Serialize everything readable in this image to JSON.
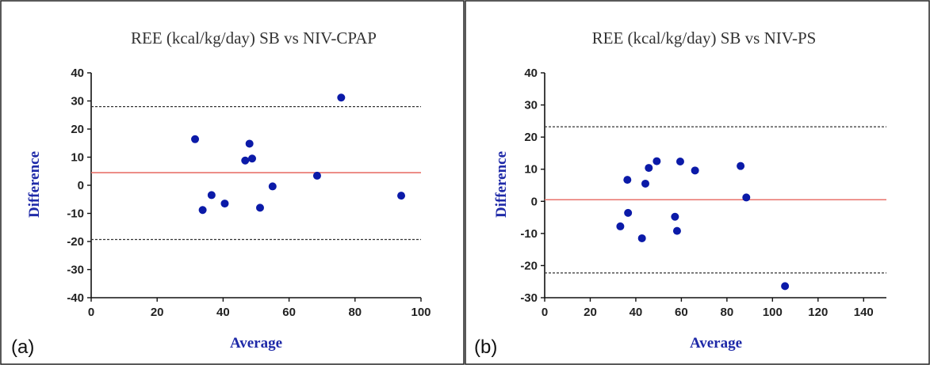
{
  "chart_data": [
    {
      "type": "scatter",
      "panel_label": "(a)",
      "title": "REE (kcal/kg/day) SB vs NIV-CPAP",
      "xlabel": "Average",
      "ylabel": "Difference",
      "xlim": [
        0,
        100
      ],
      "ylim": [
        -40,
        40
      ],
      "xticks": [
        0,
        20,
        40,
        60,
        80,
        100
      ],
      "yticks": [
        40,
        30,
        20,
        10,
        0,
        -10,
        -20,
        -30,
        -40
      ],
      "mean_line": 4.5,
      "upper_loa": 28,
      "lower_loa": -19.3,
      "grid": false,
      "points": [
        {
          "x": 31.5,
          "y": 16.4
        },
        {
          "x": 33.8,
          "y": -8.8
        },
        {
          "x": 36.5,
          "y": -3.5
        },
        {
          "x": 40.5,
          "y": -6.5
        },
        {
          "x": 46.7,
          "y": 8.8
        },
        {
          "x": 48.0,
          "y": 14.8
        },
        {
          "x": 48.8,
          "y": 9.5
        },
        {
          "x": 51.2,
          "y": -8.0
        },
        {
          "x": 55.0,
          "y": -0.4
        },
        {
          "x": 68.5,
          "y": 3.4
        },
        {
          "x": 75.8,
          "y": 31.2
        },
        {
          "x": 94.0,
          "y": -3.7
        }
      ]
    },
    {
      "type": "scatter",
      "panel_label": "(b)",
      "title": "REE (kcal/kg/day) SB vs NIV-PS",
      "xlabel": "Average",
      "ylabel": "Difference",
      "xlim": [
        0,
        150
      ],
      "ylim": [
        -30,
        40
      ],
      "xticks": [
        0,
        20,
        40,
        60,
        80,
        100,
        120,
        140
      ],
      "yticks": [
        40,
        30,
        20,
        10,
        0,
        -10,
        -20,
        -30
      ],
      "mean_line": 0.5,
      "upper_loa": 23.2,
      "lower_loa": -22.3,
      "grid": false,
      "points": [
        {
          "x": 33.2,
          "y": -7.8
        },
        {
          "x": 36.3,
          "y": 6.7
        },
        {
          "x": 36.6,
          "y": -3.6
        },
        {
          "x": 42.7,
          "y": -11.5
        },
        {
          "x": 44.2,
          "y": 5.5
        },
        {
          "x": 45.7,
          "y": 10.4
        },
        {
          "x": 49.2,
          "y": 12.5
        },
        {
          "x": 57.2,
          "y": -4.8
        },
        {
          "x": 58.1,
          "y": -9.2
        },
        {
          "x": 59.5,
          "y": 12.4
        },
        {
          "x": 66.0,
          "y": 9.6
        },
        {
          "x": 86.0,
          "y": 11.0
        },
        {
          "x": 88.5,
          "y": 1.2
        },
        {
          "x": 105.5,
          "y": -26.4
        }
      ]
    }
  ],
  "colors": {
    "points": "#0b1aa8",
    "mean_line": "#e8736b",
    "loa_lines": "#333333",
    "axis_label": "#1f2aa8"
  }
}
